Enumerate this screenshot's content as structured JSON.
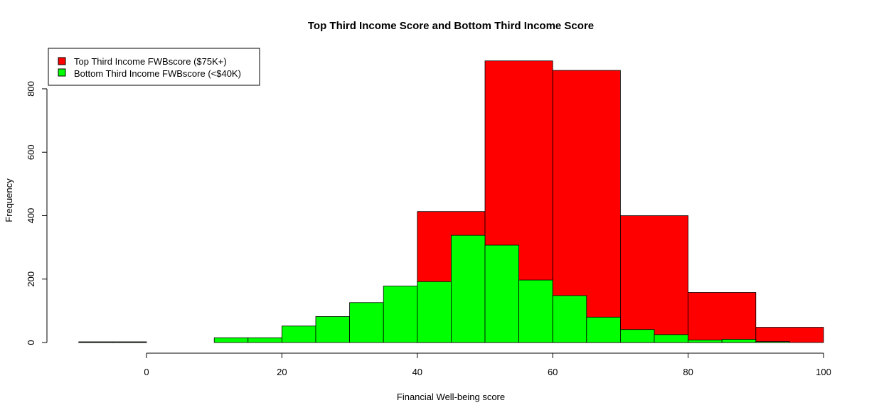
{
  "chart_data": {
    "type": "bar",
    "title": "Top Third Income Score and Bottom Third Income Score",
    "xlabel": "Financial Well-being score",
    "ylabel": "Frequency",
    "xlim": [
      -10,
      100
    ],
    "ylim": [
      0,
      890
    ],
    "x_ticks": [
      0,
      20,
      40,
      60,
      80,
      100
    ],
    "y_ticks": [
      0,
      200,
      400,
      600,
      800
    ],
    "grid": false,
    "legend_position": "top-left",
    "series": [
      {
        "name": "Top Third Income FWBscore ($75K+)",
        "color": "#ff0000",
        "bins": [
          {
            "x0": -10,
            "x1": 0,
            "value": 2
          },
          {
            "x0": 0,
            "x1": 10,
            "value": 0
          },
          {
            "x0": 10,
            "x1": 20,
            "value": 0
          },
          {
            "x0": 20,
            "x1": 30,
            "value": 0
          },
          {
            "x0": 30,
            "x1": 40,
            "value": 0
          },
          {
            "x0": 40,
            "x1": 50,
            "value": 413
          },
          {
            "x0": 50,
            "x1": 60,
            "value": 888
          },
          {
            "x0": 60,
            "x1": 70,
            "value": 858
          },
          {
            "x0": 70,
            "x1": 80,
            "value": 400
          },
          {
            "x0": 80,
            "x1": 90,
            "value": 158
          },
          {
            "x0": 90,
            "x1": 100,
            "value": 48
          }
        ]
      },
      {
        "name": "Bottom Third Income FWBscore (<$40K)",
        "color": "#00ff00",
        "bins": [
          {
            "x0": -10,
            "x1": -5,
            "value": 2
          },
          {
            "x0": -5,
            "x1": 0,
            "value": 2
          },
          {
            "x0": 0,
            "x1": 5,
            "value": 0
          },
          {
            "x0": 5,
            "x1": 10,
            "value": 0
          },
          {
            "x0": 10,
            "x1": 15,
            "value": 15
          },
          {
            "x0": 15,
            "x1": 20,
            "value": 15
          },
          {
            "x0": 20,
            "x1": 25,
            "value": 52
          },
          {
            "x0": 25,
            "x1": 30,
            "value": 82
          },
          {
            "x0": 30,
            "x1": 35,
            "value": 126
          },
          {
            "x0": 35,
            "x1": 40,
            "value": 178
          },
          {
            "x0": 40,
            "x1": 45,
            "value": 192
          },
          {
            "x0": 45,
            "x1": 50,
            "value": 338
          },
          {
            "x0": 50,
            "x1": 55,
            "value": 307
          },
          {
            "x0": 55,
            "x1": 60,
            "value": 197
          },
          {
            "x0": 60,
            "x1": 65,
            "value": 148
          },
          {
            "x0": 65,
            "x1": 70,
            "value": 80
          },
          {
            "x0": 70,
            "x1": 75,
            "value": 41
          },
          {
            "x0": 75,
            "x1": 80,
            "value": 25
          },
          {
            "x0": 80,
            "x1": 85,
            "value": 8
          },
          {
            "x0": 85,
            "x1": 90,
            "value": 10
          },
          {
            "x0": 90,
            "x1": 95,
            "value": 3
          }
        ]
      }
    ]
  }
}
